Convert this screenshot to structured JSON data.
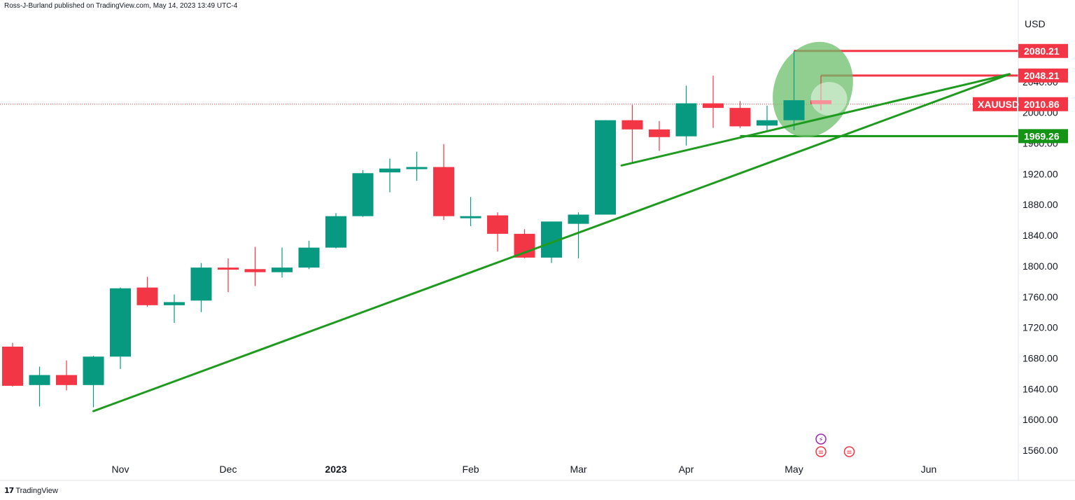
{
  "header": {
    "published": "Ross-J-Burland published on TradingView.com, May 14, 2023 13:49 UTC-4"
  },
  "footer": {
    "logo_icon": "tradingview-logo-icon",
    "brand": "TradingView"
  },
  "colors": {
    "up": "#089981",
    "down": "#f23645",
    "trend": "#1e9a1e",
    "highlight": "#6bbf6b",
    "level_red": "#f23645",
    "level_green": "#149414",
    "dotted": "#f23645"
  },
  "chart_data": {
    "type": "candlestick",
    "symbol": "XAUUSD",
    "currency": "USD",
    "timeframe": "weekly",
    "y_range": [
      1545,
      2135
    ],
    "y_ticks": [
      1560,
      1600,
      1640,
      1680,
      1720,
      1760,
      1800,
      1840,
      1880,
      1920,
      1960,
      2000,
      2040,
      2080
    ],
    "y_tick_labels": [
      "1560.00",
      "1600.00",
      "1640.00",
      "1680.00",
      "1720.00",
      "1760.00",
      "1800.00",
      "1840.00",
      "1880.00",
      "1920.00",
      "1960.00",
      "2000.00",
      "2040.00",
      "2080.00"
    ],
    "x_labels": [
      {
        "label": "Nov",
        "index": 4
      },
      {
        "label": "Dec",
        "index": 8
      },
      {
        "label": "2023",
        "index": 12
      },
      {
        "label": "Feb",
        "index": 17
      },
      {
        "label": "Mar",
        "index": 21
      },
      {
        "label": "Apr",
        "index": 25
      },
      {
        "label": "May",
        "index": 29
      },
      {
        "label": "Jun",
        "index": 34
      }
    ],
    "candles": [
      {
        "o": 1695,
        "h": 1700,
        "l": 1643,
        "c": 1644
      },
      {
        "o": 1645,
        "h": 1669,
        "l": 1617,
        "c": 1658
      },
      {
        "o": 1658,
        "h": 1677,
        "l": 1638,
        "c": 1645
      },
      {
        "o": 1645,
        "h": 1683,
        "l": 1616,
        "c": 1682
      },
      {
        "o": 1682,
        "h": 1772,
        "l": 1666,
        "c": 1771
      },
      {
        "o": 1772,
        "h": 1786,
        "l": 1747,
        "c": 1749
      },
      {
        "o": 1749,
        "h": 1763,
        "l": 1726,
        "c": 1753
      },
      {
        "o": 1755,
        "h": 1804,
        "l": 1740,
        "c": 1798
      },
      {
        "o": 1798,
        "h": 1810,
        "l": 1766,
        "c": 1797
      },
      {
        "o": 1796,
        "h": 1825,
        "l": 1774,
        "c": 1792
      },
      {
        "o": 1792,
        "h": 1824,
        "l": 1785,
        "c": 1798
      },
      {
        "o": 1798,
        "h": 1833,
        "l": 1796,
        "c": 1824
      },
      {
        "o": 1824,
        "h": 1869,
        "l": 1823,
        "c": 1865
      },
      {
        "o": 1865,
        "h": 1925,
        "l": 1864,
        "c": 1921
      },
      {
        "o": 1922,
        "h": 1940,
        "l": 1896,
        "c": 1927
      },
      {
        "o": 1927,
        "h": 1949,
        "l": 1911,
        "c": 1929
      },
      {
        "o": 1929,
        "h": 1959,
        "l": 1860,
        "c": 1865
      },
      {
        "o": 1865,
        "h": 1890,
        "l": 1852,
        "c": 1865
      },
      {
        "o": 1866,
        "h": 1870,
        "l": 1819,
        "c": 1842
      },
      {
        "o": 1842,
        "h": 1848,
        "l": 1810,
        "c": 1811
      },
      {
        "o": 1811,
        "h": 1858,
        "l": 1804,
        "c": 1858
      },
      {
        "o": 1855,
        "h": 1870,
        "l": 1810,
        "c": 1867
      },
      {
        "o": 1867,
        "h": 1990,
        "l": 1867,
        "c": 1990
      },
      {
        "o": 1990,
        "h": 2010,
        "l": 1935,
        "c": 1978
      },
      {
        "o": 1978,
        "h": 1989,
        "l": 1950,
        "c": 1968
      },
      {
        "o": 1969,
        "h": 2035,
        "l": 1957,
        "c": 2012
      },
      {
        "o": 2012,
        "h": 2048,
        "l": 1980,
        "c": 2006
      },
      {
        "o": 2006,
        "h": 2015,
        "l": 1980,
        "c": 1982
      },
      {
        "o": 1983,
        "h": 2009,
        "l": 1975,
        "c": 1990
      },
      {
        "o": 1990,
        "h": 2080,
        "l": 1977,
        "c": 2016
      },
      {
        "o": 2016,
        "h": 2048,
        "l": 2003,
        "c": 2011
      }
    ],
    "trendlines": [
      {
        "from": {
          "index": 3,
          "price": 1611
        },
        "to": {
          "index": 37,
          "price": 2050
        }
      },
      {
        "from": {
          "index": 22.6,
          "price": 1931
        },
        "to": {
          "index": 37,
          "price": 2050
        }
      }
    ],
    "price_levels": [
      {
        "value": 2080.21,
        "label": "2080.21",
        "type": "resistance",
        "from_index": 29,
        "color": "#f23645"
      },
      {
        "value": 2048.21,
        "label": "2048.21",
        "type": "resistance",
        "from_index": 30,
        "color": "#f23645"
      },
      {
        "value": 1969.26,
        "label": "1969.26",
        "type": "support",
        "from_index": 27,
        "color": "#149414"
      }
    ],
    "current_price": {
      "value": 2010.86,
      "label": "2010.86",
      "symbol_label": "XAUUSD"
    },
    "highlight_ellipses": [
      {
        "center_index": 29.7,
        "center_price": 2030,
        "description": "green ellipse around recent highs"
      },
      {
        "center_index": 30.3,
        "center_price": 2018,
        "description": "inner light circle around last candle"
      }
    ],
    "event_icons": [
      {
        "name": "flash-event-icon",
        "index": 30,
        "glyph": "⚡"
      },
      {
        "name": "us-flag-event-icon",
        "index": 30,
        "glyph": "≡"
      },
      {
        "name": "us-flag-event-icon-2",
        "index": 31,
        "glyph": "≡"
      }
    ]
  }
}
